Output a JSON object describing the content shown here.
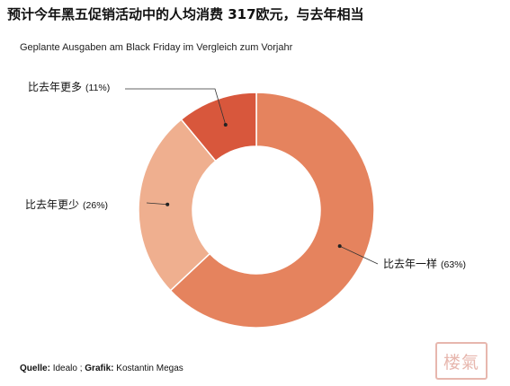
{
  "title": "预计今年黑五促销活动中的人均消费 317欧元，与去年相当",
  "subtitle": "Geplante Ausgaben am Black Friday im Vergleich zum Vorjahr",
  "footer": {
    "source_label": "Quelle:",
    "source": "Idealo",
    "separator": ";",
    "graphic_label": "Grafik:",
    "graphic": "Kostantin Megas"
  },
  "watermark_text": "楼氣",
  "colors": {
    "same": "#e5835e",
    "less": "#efaf8f",
    "more": "#d8573c",
    "leader": "#333333"
  },
  "chart_data": {
    "type": "pie",
    "donut": true,
    "title": "",
    "slices": [
      {
        "label": "比去年一样",
        "value": 63,
        "pct_label": "(63%)",
        "color": "#e5835e"
      },
      {
        "label": "比去年更少",
        "value": 26,
        "pct_label": "(26%)",
        "color": "#efaf8f"
      },
      {
        "label": "比去年更多",
        "value": 11,
        "pct_label": "(11%)",
        "color": "#d8573c"
      }
    ]
  }
}
